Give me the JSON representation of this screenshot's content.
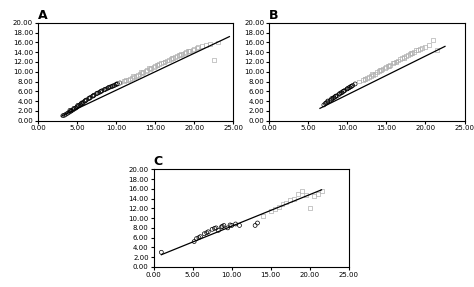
{
  "chart_data": [
    {
      "type": "scatter",
      "title": "A",
      "grid": false,
      "xlim": [
        0,
        25
      ],
      "ylim": [
        0,
        20
      ],
      "xticks": [
        {
          "value": 0.0,
          "label": "0.00"
        },
        {
          "value": 5.0,
          "label": "5.00"
        },
        {
          "value": 10.0,
          "label": "10.00"
        },
        {
          "value": 15.0,
          "label": "15.00"
        },
        {
          "value": 20.0,
          "label": "20.00"
        },
        {
          "value": 25.0,
          "label": "25.00"
        }
      ],
      "yticks": [
        {
          "value": 0.0,
          "label": "0.00"
        },
        {
          "value": 2.0,
          "label": "2.00"
        },
        {
          "value": 4.0,
          "label": "4.00"
        },
        {
          "value": 6.0,
          "label": "6.00"
        },
        {
          "value": 8.0,
          "label": "8.00"
        },
        {
          "value": 10.0,
          "label": "10.00"
        },
        {
          "value": 12.0,
          "label": "12.00"
        },
        {
          "value": 14.0,
          "label": "14.00"
        },
        {
          "value": 16.0,
          "label": "16.00"
        },
        {
          "value": 18.0,
          "label": "18.00"
        },
        {
          "value": 20.0,
          "label": "20.00"
        }
      ],
      "series": [
        {
          "type": "scatter",
          "color": "#000000",
          "marker": "o",
          "x": [
            3.2,
            3.4,
            3.6,
            3.8,
            4.0,
            4.2,
            4.3,
            4.5,
            4.7,
            4.9,
            5.0,
            5.2,
            5.4,
            5.5,
            5.7,
            5.8,
            6.0,
            6.2,
            6.5,
            6.7,
            7.0,
            7.2,
            7.5,
            7.8,
            8.0,
            8.2,
            8.5,
            8.8,
            9.0,
            9.3,
            9.5,
            9.8,
            10.0,
            10.2,
            10.5,
            4.1,
            4.6,
            5.1,
            5.6,
            6.1,
            6.6,
            7.1,
            7.6,
            8.1,
            8.6,
            9.1,
            9.6,
            10.1
          ],
          "values": [
            1.0,
            1.1,
            1.3,
            1.5,
            1.7,
            1.9,
            2.0,
            2.2,
            2.4,
            2.6,
            2.8,
            3.0,
            3.2,
            3.4,
            3.5,
            3.7,
            4.0,
            4.2,
            4.5,
            4.7,
            5.0,
            5.2,
            5.5,
            5.7,
            5.9,
            6.1,
            6.3,
            6.5,
            6.7,
            6.9,
            7.0,
            7.2,
            7.4,
            7.5,
            7.7,
            2.1,
            2.5,
            3.1,
            3.6,
            4.1,
            4.6,
            5.1,
            5.6,
            6.0,
            6.4,
            6.8,
            7.1,
            7.5
          ]
        },
        {
          "type": "scatter",
          "color": "#b0b0b0",
          "marker": "s",
          "x": [
            10.5,
            11.0,
            11.2,
            11.5,
            11.8,
            12.0,
            12.3,
            12.5,
            12.8,
            13.0,
            13.3,
            13.5,
            13.8,
            14.0,
            14.3,
            14.5,
            14.8,
            15.0,
            15.3,
            15.5,
            15.8,
            16.0,
            16.3,
            16.5,
            16.8,
            17.0,
            17.3,
            17.5,
            17.8,
            18.0,
            18.3,
            18.5,
            18.8,
            19.0,
            19.3,
            19.5,
            19.8,
            20.0,
            20.3,
            20.5,
            21.0,
            21.5,
            22.0,
            22.5,
            23.0,
            11.3,
            12.2,
            13.2,
            14.2,
            15.2,
            16.2,
            17.2,
            18.2,
            19.2
          ],
          "values": [
            7.8,
            8.1,
            8.2,
            8.4,
            8.6,
            8.8,
            9.0,
            9.2,
            9.4,
            9.6,
            9.8,
            10.0,
            10.2,
            10.4,
            10.6,
            10.8,
            11.0,
            11.2,
            11.4,
            11.5,
            11.7,
            11.9,
            12.1,
            12.3,
            12.5,
            12.7,
            12.9,
            13.0,
            13.2,
            13.4,
            13.6,
            13.7,
            13.9,
            14.0,
            14.2,
            14.3,
            14.5,
            14.6,
            14.8,
            15.0,
            15.3,
            15.5,
            15.7,
            12.5,
            16.0,
            8.3,
            9.1,
            9.9,
            10.7,
            11.3,
            12.0,
            12.8,
            13.5,
            14.2
          ]
        },
        {
          "type": "line",
          "color": "#000000",
          "line_style": "solid",
          "x": [
            3.0,
            24.5
          ],
          "values": [
            0.9,
            17.2
          ]
        }
      ]
    },
    {
      "type": "scatter",
      "title": "B",
      "grid": false,
      "xlim": [
        0,
        25
      ],
      "ylim": [
        0,
        20
      ],
      "xticks": [
        {
          "value": 0.0,
          "label": "0.00"
        },
        {
          "value": 5.0,
          "label": "5.00"
        },
        {
          "value": 10.0,
          "label": "10.00"
        },
        {
          "value": 15.0,
          "label": "15.00"
        },
        {
          "value": 20.0,
          "label": "20.00"
        },
        {
          "value": 25.0,
          "label": "25.00"
        }
      ],
      "yticks": [
        {
          "value": 0.0,
          "label": "0.00"
        },
        {
          "value": 2.0,
          "label": "2.00"
        },
        {
          "value": 4.0,
          "label": "4.00"
        },
        {
          "value": 6.0,
          "label": "6.00"
        },
        {
          "value": 8.0,
          "label": "8.00"
        },
        {
          "value": 10.0,
          "label": "10.00"
        },
        {
          "value": 12.0,
          "label": "12.00"
        },
        {
          "value": 14.0,
          "label": "14.00"
        },
        {
          "value": 16.0,
          "label": "16.00"
        },
        {
          "value": 18.0,
          "label": "18.00"
        },
        {
          "value": 20.0,
          "label": "20.00"
        }
      ],
      "series": [
        {
          "type": "scatter",
          "color": "#000000",
          "marker": "o",
          "x": [
            7.0,
            7.2,
            7.5,
            7.8,
            8.0,
            8.2,
            8.5,
            8.7,
            9.0,
            9.2,
            9.5,
            9.7,
            10.0,
            10.2,
            10.5,
            10.7,
            11.0,
            7.5,
            8.0,
            8.5,
            9.0,
            9.5,
            10.0,
            10.5,
            7.3,
            8.3,
            9.3,
            10.3
          ],
          "values": [
            3.2,
            3.5,
            3.8,
            4.1,
            4.3,
            4.6,
            4.9,
            5.1,
            5.4,
            5.7,
            6.0,
            6.2,
            6.5,
            6.7,
            7.0,
            7.2,
            7.5,
            4.0,
            4.5,
            5.0,
            5.5,
            6.0,
            6.5,
            7.0,
            3.6,
            4.7,
            5.7,
            6.8
          ]
        },
        {
          "type": "scatter",
          "color": "#b0b0b0",
          "marker": "s",
          "x": [
            11.5,
            12.0,
            12.3,
            12.5,
            12.8,
            13.0,
            13.3,
            13.5,
            13.8,
            14.0,
            14.3,
            14.5,
            14.8,
            15.0,
            15.3,
            15.5,
            15.8,
            16.0,
            16.3,
            16.5,
            16.8,
            17.0,
            17.3,
            17.5,
            17.8,
            18.0,
            18.3,
            18.5,
            18.8,
            19.0,
            19.3,
            19.5,
            20.0,
            20.5,
            21.0,
            21.5,
            12.2,
            13.2,
            14.2,
            15.2,
            16.2,
            17.2,
            18.2
          ],
          "values": [
            8.0,
            8.3,
            8.5,
            8.7,
            9.0,
            9.2,
            9.4,
            9.6,
            9.9,
            10.1,
            10.3,
            10.5,
            10.8,
            11.0,
            11.2,
            11.4,
            11.7,
            11.9,
            12.1,
            12.3,
            12.6,
            12.8,
            13.0,
            13.2,
            13.5,
            13.7,
            13.9,
            14.1,
            14.4,
            14.5,
            14.7,
            14.9,
            15.1,
            15.4,
            16.5,
            14.5,
            8.6,
            9.5,
            10.4,
            11.2,
            12.0,
            12.9,
            13.8
          ]
        },
        {
          "type": "line",
          "color": "#000000",
          "line_style": "solid",
          "x": [
            6.5,
            22.5
          ],
          "values": [
            2.5,
            15.2
          ]
        }
      ]
    },
    {
      "type": "scatter",
      "title": "C",
      "grid": false,
      "xlim": [
        0,
        25
      ],
      "ylim": [
        0,
        20
      ],
      "xticks": [
        {
          "value": 0.0,
          "label": "0.00"
        },
        {
          "value": 5.0,
          "label": "5.00"
        },
        {
          "value": 10.0,
          "label": "10.00"
        },
        {
          "value": 15.0,
          "label": "15.00"
        },
        {
          "value": 20.0,
          "label": "20.00"
        },
        {
          "value": 25.0,
          "label": "25.00"
        }
      ],
      "yticks": [
        {
          "value": 0.0,
          "label": "0.00"
        },
        {
          "value": 2.0,
          "label": "2.00"
        },
        {
          "value": 4.0,
          "label": "4.00"
        },
        {
          "value": 6.0,
          "label": "6.00"
        },
        {
          "value": 8.0,
          "label": "8.00"
        },
        {
          "value": 10.0,
          "label": "10.00"
        },
        {
          "value": 12.0,
          "label": "12.00"
        },
        {
          "value": 14.0,
          "label": "14.00"
        },
        {
          "value": 16.0,
          "label": "16.00"
        },
        {
          "value": 18.0,
          "label": "18.00"
        },
        {
          "value": 20.0,
          "label": "20.00"
        }
      ],
      "series": [
        {
          "type": "scatter",
          "color": "#000000",
          "marker": "o",
          "x": [
            1.0,
            5.2,
            5.5,
            6.0,
            6.5,
            7.0,
            7.5,
            8.0,
            8.3,
            8.7,
            9.0,
            9.5,
            10.0,
            10.5,
            11.0,
            13.0,
            13.3,
            5.8,
            6.8,
            7.8,
            8.8,
            9.8
          ],
          "values": [
            3.0,
            5.2,
            5.8,
            6.2,
            6.8,
            7.2,
            7.7,
            8.0,
            7.5,
            8.2,
            8.5,
            8.0,
            8.5,
            8.8,
            8.5,
            8.5,
            9.0,
            6.0,
            7.0,
            7.9,
            8.3,
            8.6
          ]
        },
        {
          "type": "scatter",
          "color": "#b0b0b0",
          "marker": "s",
          "x": [
            14.0,
            15.0,
            16.0,
            17.0,
            18.0,
            18.5,
            19.0,
            20.0,
            20.5,
            21.0,
            21.5,
            15.5,
            16.5,
            17.5,
            19.5
          ],
          "values": [
            10.5,
            11.5,
            12.3,
            13.2,
            14.0,
            15.0,
            15.5,
            12.0,
            14.5,
            15.0,
            15.5,
            11.8,
            12.8,
            13.7,
            14.8
          ]
        },
        {
          "type": "line",
          "color": "#000000",
          "line_style": "solid",
          "x": [
            1.0,
            21.5
          ],
          "values": [
            2.5,
            15.8
          ]
        }
      ]
    }
  ]
}
